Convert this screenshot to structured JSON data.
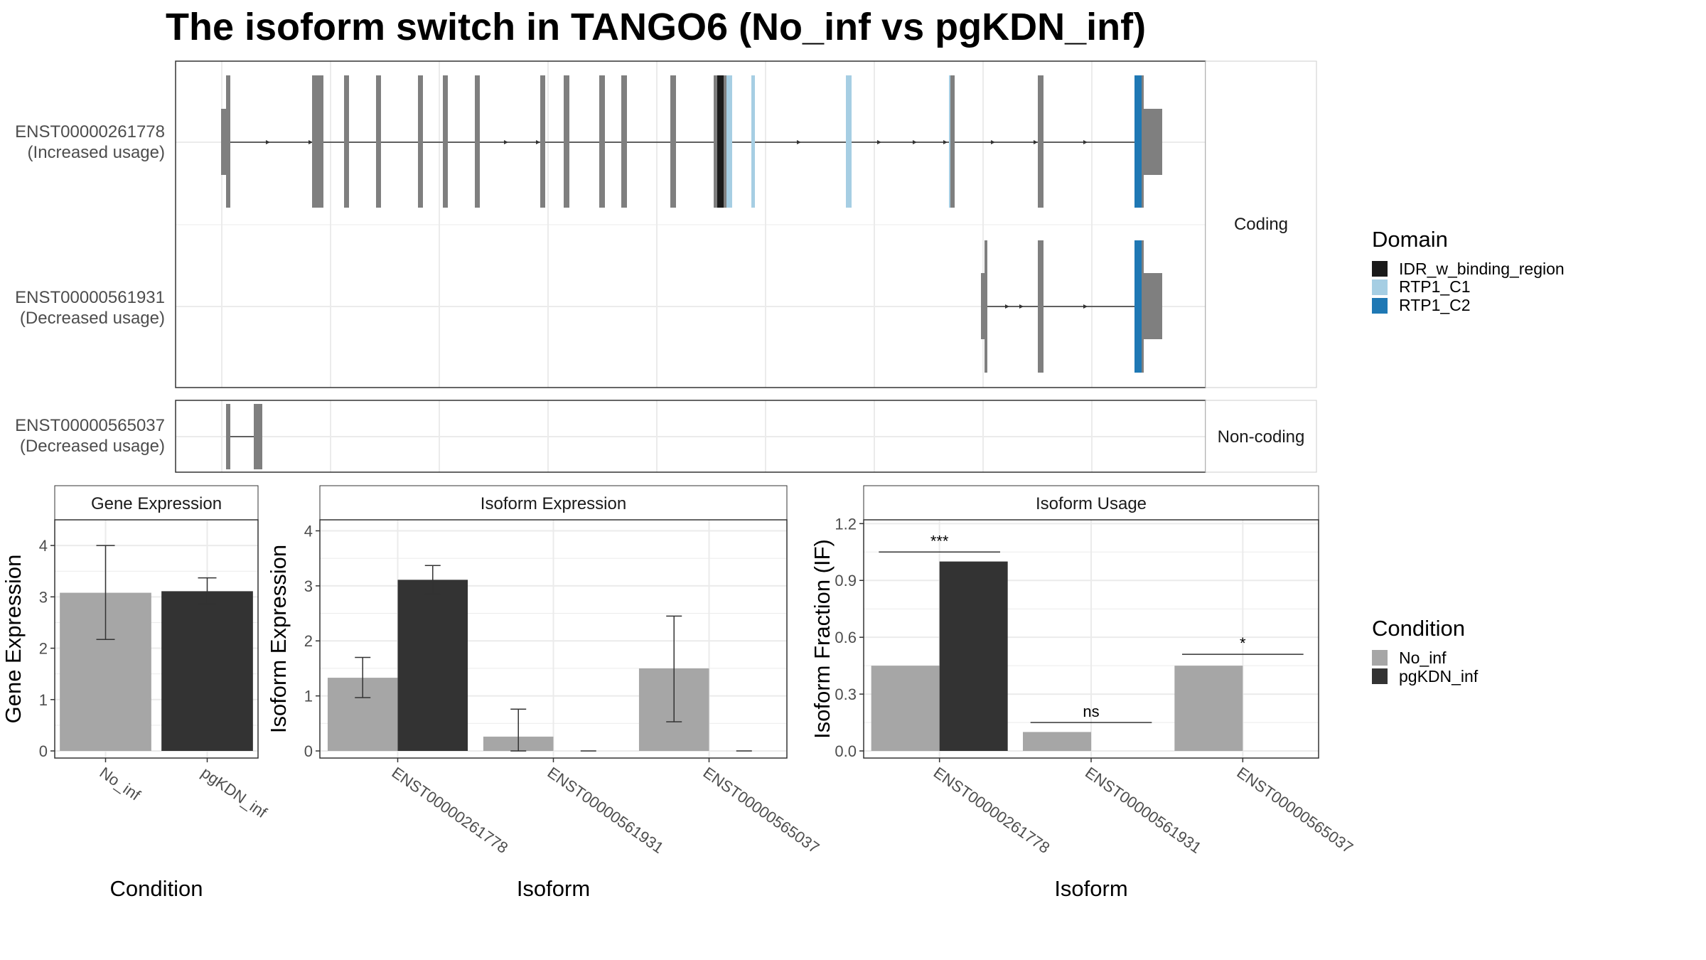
{
  "title": "The isoform switch in TANGO6 (No_inf vs pgKDN_inf)",
  "colors": {
    "exon": "#7f7f7f",
    "no_inf": "#a6a6a6",
    "pgkdn_inf": "#333333",
    "IDR_w_binding_region": "#1a1a1a",
    "RTP1_C1": "#a6cee3",
    "RTP1_C2": "#1f78b4",
    "grid": "#ebebeb"
  },
  "structure": {
    "coding_strip": "Coding",
    "noncoding_strip": "Non-coding",
    "isoforms": [
      {
        "id": "ENST00000261778",
        "usage": "(Increased usage)",
        "group": "Coding"
      },
      {
        "id": "ENST00000561931",
        "usage": "(Decreased usage)",
        "group": "Coding"
      },
      {
        "id": "ENST00000565037",
        "usage": "(Decreased usage)",
        "group": "Non-coding"
      }
    ]
  },
  "domain_legend": {
    "title": "Domain",
    "items": [
      {
        "label": "IDR_w_binding_region",
        "color": "#1a1a1a"
      },
      {
        "label": "RTP1_C1",
        "color": "#a6cee3"
      },
      {
        "label": "RTP1_C2",
        "color": "#1f78b4"
      }
    ]
  },
  "condition_legend": {
    "title": "Condition",
    "items": [
      {
        "label": "No_inf",
        "color": "#a6a6a6"
      },
      {
        "label": "pgKDN_inf",
        "color": "#333333"
      }
    ]
  },
  "chart_data": [
    {
      "type": "bar",
      "title": "Gene Expression",
      "xlabel": "Condition",
      "ylabel": "Gene Expression",
      "ylim": [
        0,
        4.5
      ],
      "yticks": [
        0,
        1,
        2,
        3,
        4
      ],
      "yticklabels": [
        "0",
        "1",
        "2",
        "3",
        "4"
      ],
      "categories": [
        "No_inf",
        "pgKDN_inf"
      ],
      "values": [
        3.08,
        3.11
      ],
      "error_low": [
        2.17,
        2.86
      ],
      "error_high": [
        4.0,
        3.37
      ],
      "colors": [
        "#a6a6a6",
        "#333333"
      ],
      "grid": true
    },
    {
      "type": "bar",
      "title": "Isoform Expression",
      "xlabel": "Isoform",
      "ylabel": "Isoform Expression",
      "ylim": [
        0,
        4.2
      ],
      "yticks": [
        0,
        1,
        2,
        3,
        4
      ],
      "yticklabels": [
        "0",
        "1",
        "2",
        "3",
        "4"
      ],
      "categories": [
        "ENST00000261778",
        "ENST00000561931",
        "ENST00000565037"
      ],
      "series": [
        {
          "name": "No_inf",
          "values": [
            1.33,
            0.26,
            1.5
          ],
          "error_low": [
            0.97,
            0.0,
            0.53
          ],
          "error_high": [
            1.7,
            0.76,
            2.45
          ]
        },
        {
          "name": "pgKDN_inf",
          "values": [
            3.11,
            0.0,
            0.0
          ],
          "error_low": [
            2.85,
            0.0,
            0.0
          ],
          "error_high": [
            3.37,
            0.0,
            0.0
          ]
        }
      ],
      "grid": true
    },
    {
      "type": "bar",
      "title": "Isoform Usage",
      "xlabel": "Isoform",
      "ylabel": "Isoform Fraction (IF)",
      "ylim": [
        0,
        1.22
      ],
      "yticks": [
        0,
        0.3,
        0.6,
        0.9,
        1.2
      ],
      "yticklabels": [
        "0.0",
        "0.3",
        "0.6",
        "0.9",
        "1.2"
      ],
      "categories": [
        "ENST00000261778",
        "ENST00000561931",
        "ENST00000565037"
      ],
      "series": [
        {
          "name": "No_inf",
          "values": [
            0.45,
            0.1,
            0.45
          ]
        },
        {
          "name": "pgKDN_inf",
          "values": [
            1.0,
            0.0,
            0.0
          ]
        }
      ],
      "significance": [
        {
          "category": "ENST00000261778",
          "label": "***",
          "y": 1.05
        },
        {
          "category": "ENST00000561931",
          "label": "ns",
          "y": 0.15
        },
        {
          "category": "ENST00000565037",
          "label": "*",
          "y": 0.51
        }
      ],
      "grid": true
    }
  ]
}
